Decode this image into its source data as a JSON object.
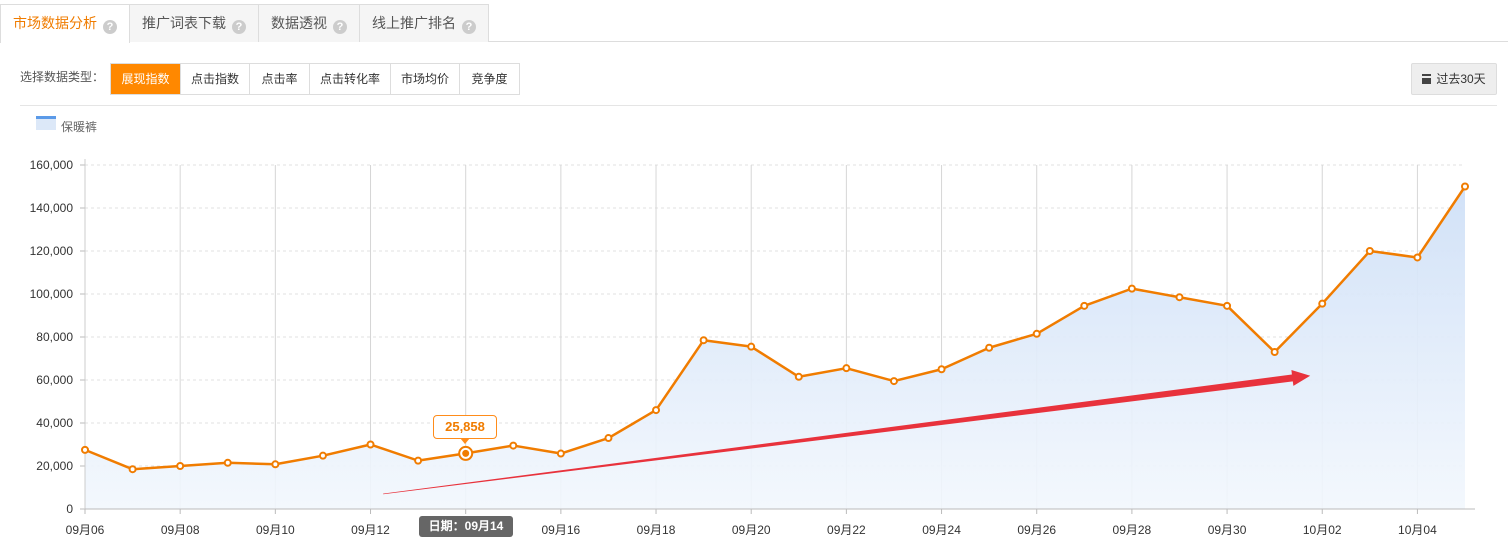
{
  "tabs": [
    {
      "label": "市场数据分析",
      "active": true
    },
    {
      "label": "推广词表下载",
      "active": false
    },
    {
      "label": "数据透视",
      "active": false
    },
    {
      "label": "线上推广排名",
      "active": false
    }
  ],
  "help_glyph": "?",
  "filter": {
    "label": "选择数据类型：",
    "types": [
      "展现指数",
      "点击指数",
      "点击率",
      "点击转化率",
      "市场均价",
      "竞争度"
    ],
    "active_index": 0
  },
  "date_range": {
    "icon": "calendar-icon",
    "label": "过去30天"
  },
  "legend": {
    "series_name": "保暖裤"
  },
  "tooltip": {
    "value_label": "25,858",
    "date_label": "日期：09月14"
  },
  "colors": {
    "accent": "#ff8800",
    "line": "#f07c00",
    "area_top": "#cfe0f7",
    "arrow": "#e8323c",
    "legend_line": "#5b9ae8"
  },
  "chart_data": {
    "type": "area",
    "series": [
      {
        "name": "保暖裤",
        "x": [
          "09月06",
          "09月07",
          "09月08",
          "09月09",
          "09月10",
          "09月11",
          "09月12",
          "09月13",
          "09月14",
          "09月15",
          "09月16",
          "09月17",
          "09月18",
          "09月19",
          "09月20",
          "09月21",
          "09月22",
          "09月23",
          "09月24",
          "09月25",
          "09月26",
          "09月27",
          "09月28",
          "09月29",
          "09月30",
          "10月01",
          "10月02",
          "10月03",
          "10月04",
          "10月05"
        ],
        "values": [
          27500,
          18500,
          20000,
          21500,
          20800,
          24800,
          30000,
          22500,
          25858,
          29500,
          25800,
          33000,
          46000,
          78500,
          75500,
          61500,
          65500,
          59500,
          65000,
          75000,
          81500,
          94500,
          102500,
          98500,
          94500,
          73000,
          95500,
          120000,
          117000,
          150000
        ]
      }
    ],
    "x_tick_labels": [
      "09月06",
      "09月08",
      "09月10",
      "09月12",
      "09月14",
      "09月16",
      "09月18",
      "09月20",
      "09月22",
      "09月24",
      "09月26",
      "09月28",
      "09月30",
      "10月02",
      "10月04"
    ],
    "y_ticks": [
      0,
      20000,
      40000,
      60000,
      80000,
      100000,
      120000,
      140000,
      160000
    ],
    "y_tick_labels": [
      "0",
      "20,000",
      "40,000",
      "60,000",
      "80,000",
      "100,000",
      "120,000",
      "140,000",
      "160,000"
    ],
    "ylim": [
      0,
      160000
    ],
    "highlighted_point": "09月14",
    "annotation": {
      "type": "arrow",
      "from": [
        "09月13",
        7000
      ],
      "to": [
        "10月02",
        62000
      ]
    },
    "grid": true,
    "legend_placement": "top-left"
  }
}
